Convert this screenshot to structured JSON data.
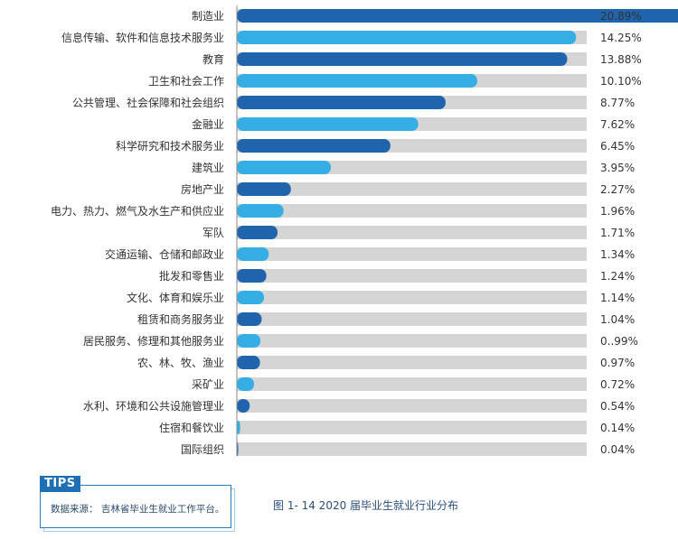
{
  "chart_data": {
    "type": "bar",
    "orientation": "horizontal",
    "categories": [
      "制造业",
      "信息传输、软件和信息技术服务业",
      "教育",
      "卫生和社会工作",
      "公共管理、社会保障和社会组织",
      "金融业",
      "科学研究和技术服务业",
      "建筑业",
      "房地产业",
      "电力、热力、燃气及水生产和供应业",
      "军队",
      "交通运输、仓储和邮政业",
      "批发和零售业",
      "文化、体育和娱乐业",
      "租赁和商务服务业",
      "居民服务、修理和其他服务业",
      "农、林、牧、渔业",
      "采矿业",
      "水利、环境和公共设施管理业",
      "住宿和餐饮业",
      "国际组织"
    ],
    "values": [
      20.89,
      14.25,
      13.88,
      10.1,
      8.77,
      7.62,
      6.45,
      3.95,
      2.27,
      1.96,
      1.71,
      1.34,
      1.24,
      1.14,
      1.04,
      0.99,
      0.97,
      0.72,
      0.54,
      0.14,
      0.04
    ],
    "value_labels": [
      "20.89%",
      "14.25%",
      "13.88%",
      "10.10%",
      "8.77%",
      "7.62%",
      "6.45%",
      "3.95%",
      "2.27%",
      "1.96%",
      "1.71%",
      "1.34%",
      "1.24%",
      "1.14%",
      "1.04%",
      "0..99%",
      "0.97%",
      "0.72%",
      "0.54%",
      "0.14%",
      "0.04%"
    ],
    "xlim": [
      0,
      25
    ],
    "grid": false,
    "legend": "none",
    "colors": {
      "dark_blue": "#1f64ad",
      "light_blue": "#35aee6",
      "track": "#d5d5d5",
      "axis": "#8a8a8a"
    }
  },
  "tips": {
    "tag": "TIPS",
    "source_text": "数据来源： 吉林省毕业生就业工作平台。"
  },
  "caption": "图 1- 14  2020 届毕业生就业行业分布"
}
